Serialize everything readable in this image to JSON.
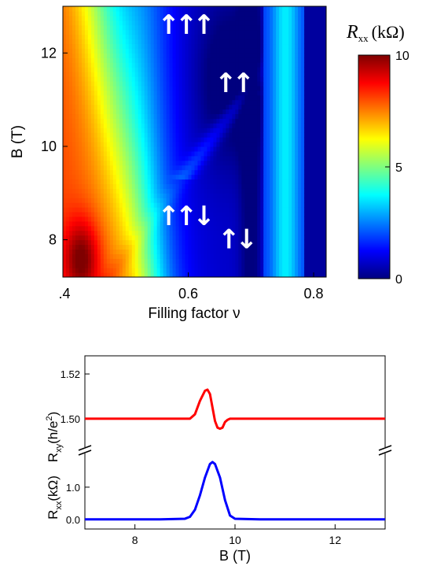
{
  "chart_data": [
    {
      "type": "heatmap",
      "title": "",
      "xlabel": "Filling factor ν",
      "ylabel": "B (T)",
      "xlim": [
        0.4,
        0.82
      ],
      "ylim": [
        7.2,
        13.0
      ],
      "x_ticks": [
        0.4,
        0.6,
        0.8
      ],
      "x_tick_labels": [
        ".4",
        "0.6",
        "0.8"
      ],
      "y_ticks": [
        8,
        10,
        12
      ],
      "y_tick_labels": [
        "8",
        "10",
        "12"
      ],
      "colorbar": {
        "label_main": "R",
        "label_sub": "xx",
        "label_unit": "(kΩ)",
        "range": [
          0,
          10
        ],
        "ticks": [
          0,
          5,
          10
        ],
        "tick_labels": [
          "0",
          "5",
          "10"
        ],
        "colors": [
          "#00007f",
          "#0000ff",
          "#007fff",
          "#00ffff",
          "#7fff7f",
          "#ffff00",
          "#ff7f00",
          "#ff0000",
          "#7f0000"
        ]
      },
      "annotations": [
        {
          "text": "↑↑↑",
          "x": 0.593,
          "y": 12.65
        },
        {
          "text": "↑↑",
          "x": 0.67,
          "y": 11.4
        },
        {
          "text": "↑↑↓",
          "x": 0.593,
          "y": 8.55
        },
        {
          "text": "↑↓",
          "x": 0.675,
          "y": 8.05
        }
      ],
      "regions": [
        {
          "kind": "low_left_lobe",
          "value": 9.5,
          "x": 0.43,
          "y": 7.6
        },
        {
          "kind": "spin_polarized_dip",
          "value": 0.3,
          "x": 0.665,
          "y": 11.4
        },
        {
          "kind": "transition_dip",
          "value": 0.6,
          "x": 0.6,
          "y": 8.3
        },
        {
          "kind": "minimum_column",
          "value": 0.2,
          "x": 0.8,
          "y": 10
        }
      ]
    },
    {
      "type": "line",
      "title": "",
      "xlabel": "B (T)",
      "xlim": [
        7,
        13
      ],
      "x_ticks": [
        8,
        10,
        12
      ],
      "x_tick_labels": [
        "8",
        "10",
        "12"
      ],
      "series": [
        {
          "ylabel_main": "R",
          "ylabel_sub": "xy",
          "ylabel_unit": "(h/e",
          "ylabel_sup": "2",
          "ylabel_close": ")",
          "color": "#ff0000",
          "ylim": [
            1.488,
            1.526
          ],
          "y_ticks": [
            1.5,
            1.52
          ],
          "y_tick_labels": [
            "1.50",
            "1.52"
          ],
          "x": [
            7.0,
            8.5,
            9.1,
            9.2,
            9.3,
            9.4,
            9.45,
            9.5,
            9.55,
            9.6,
            9.65,
            9.7,
            9.75,
            9.8,
            9.85,
            9.9,
            10.0,
            10.5,
            11.0,
            11.5,
            12.0,
            12.5,
            13.0
          ],
          "y": [
            1.5,
            1.5,
            1.5,
            1.502,
            1.508,
            1.5125,
            1.513,
            1.511,
            1.505,
            1.499,
            1.496,
            1.4955,
            1.496,
            1.4985,
            1.4995,
            1.5,
            1.5,
            1.5,
            1.5,
            1.5,
            1.5,
            1.5,
            1.5
          ]
        },
        {
          "ylabel_main": "R",
          "ylabel_sub": "xx",
          "ylabel_unit": "(kΩ)",
          "color": "#0000ff",
          "ylim": [
            -0.25,
            1.95
          ],
          "y_ticks": [
            0.0,
            1.0
          ],
          "y_tick_labels": [
            "0.0",
            "1.0"
          ],
          "x": [
            7.0,
            8.5,
            9.0,
            9.1,
            9.2,
            9.3,
            9.4,
            9.5,
            9.55,
            9.6,
            9.7,
            9.8,
            9.9,
            10.0,
            10.5,
            11.0,
            11.5,
            12.0,
            12.5,
            13.0
          ],
          "y": [
            0.0,
            0.0,
            0.02,
            0.08,
            0.3,
            0.75,
            1.3,
            1.72,
            1.78,
            1.72,
            1.3,
            0.6,
            0.12,
            0.02,
            0.0,
            0.0,
            0.0,
            0.0,
            0.0,
            0.0
          ]
        }
      ]
    }
  ]
}
